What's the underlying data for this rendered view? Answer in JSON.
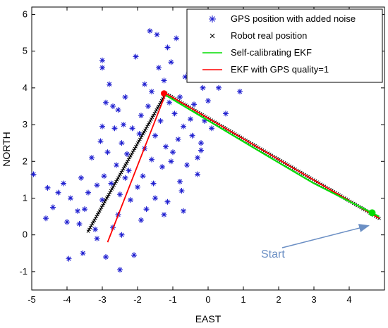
{
  "chart_data": {
    "type": "scatter",
    "xlabel": "EAST",
    "ylabel": "NORTH",
    "xlim": [
      -5,
      5
    ],
    "ylim": [
      -1.5,
      6.2
    ],
    "xticks": [
      "-5",
      "-4",
      "-3",
      "-2",
      "-1",
      "0",
      "1",
      "2",
      "3",
      "4"
    ],
    "yticks": [
      "-1",
      "0",
      "1",
      "2",
      "3",
      "4",
      "5",
      "6"
    ],
    "xtick_values": [
      -5,
      -4,
      -3,
      -2,
      -1,
      0,
      1,
      2,
      3,
      4
    ],
    "ytick_values": [
      -1,
      0,
      1,
      2,
      3,
      4,
      5,
      6
    ],
    "grid": false,
    "legend_position": "top-right",
    "annotation": {
      "text": "Start",
      "color": "#6b8fc4",
      "from": [
        1.9,
        -0.5
      ],
      "to": [
        4.55,
        0.25
      ]
    },
    "series": [
      {
        "name": "GPS position with added noise",
        "kind": "scatter",
        "marker": "*",
        "color": "#1f1fd0",
        "points": [
          [
            -4.95,
            1.65
          ],
          [
            -4.6,
            0.45
          ],
          [
            -4.55,
            1.28
          ],
          [
            -4.4,
            0.75
          ],
          [
            -4.1,
            1.4
          ],
          [
            -4.0,
            0.35
          ],
          [
            -3.95,
            -0.65
          ],
          [
            -3.9,
            1.0
          ],
          [
            -3.65,
            0.3
          ],
          [
            -3.6,
            1.55
          ],
          [
            -3.55,
            -0.5
          ],
          [
            -3.5,
            0.7
          ],
          [
            -3.4,
            1.15
          ],
          [
            -3.3,
            2.1
          ],
          [
            -3.2,
            0.15
          ],
          [
            -3.15,
            1.35
          ],
          [
            -3.05,
            2.55
          ],
          [
            -3.0,
            0.95
          ],
          [
            -3.0,
            4.75
          ],
          [
            -3.0,
            4.55
          ],
          [
            -3.0,
            2.95
          ],
          [
            -2.95,
            1.6
          ],
          [
            -2.9,
            3.6
          ],
          [
            -2.85,
            2.25
          ],
          [
            -2.8,
            4.1
          ],
          [
            -2.7,
            0.2
          ],
          [
            -2.7,
            3.5
          ],
          [
            -2.65,
            2.9
          ],
          [
            -2.6,
            1.9
          ],
          [
            -2.55,
            0.55
          ],
          [
            -2.55,
            3.4
          ],
          [
            -2.5,
            1.1
          ],
          [
            -2.45,
            2.5
          ],
          [
            -2.4,
            3.0
          ],
          [
            -2.35,
            1.55
          ],
          [
            -2.3,
            2.2
          ],
          [
            -2.25,
            1.75
          ],
          [
            -2.2,
            0.95
          ],
          [
            -2.1,
            -0.55
          ],
          [
            -2.0,
            1.3
          ],
          [
            -1.95,
            2.75
          ],
          [
            -1.9,
            3.25
          ],
          [
            -1.85,
            1.6
          ],
          [
            -1.8,
            2.35
          ],
          [
            -1.75,
            0.7
          ],
          [
            -1.7,
            3.5
          ],
          [
            -1.65,
            5.55
          ],
          [
            -1.6,
            2.05
          ],
          [
            -1.55,
            1.4
          ],
          [
            -1.5,
            2.7
          ],
          [
            -1.45,
            5.45
          ],
          [
            -1.4,
            4.55
          ],
          [
            -1.35,
            3.1
          ],
          [
            -1.3,
            1.85
          ],
          [
            -1.25,
            4.2
          ],
          [
            -1.2,
            2.4
          ],
          [
            -1.15,
            5.1
          ],
          [
            -1.1,
            3.6
          ],
          [
            -1.05,
            4.7
          ],
          [
            -1.0,
            2.25
          ],
          [
            -0.95,
            3.3
          ],
          [
            -0.9,
            5.35
          ],
          [
            -0.85,
            2.6
          ],
          [
            -0.8,
            3.75
          ],
          [
            -0.75,
            1.2
          ],
          [
            -0.7,
            2.95
          ],
          [
            -0.65,
            4.3
          ],
          [
            -0.6,
            1.9
          ],
          [
            -0.5,
            3.15
          ],
          [
            -0.45,
            2.7
          ],
          [
            -0.4,
            3.55
          ],
          [
            -0.3,
            1.65
          ],
          [
            -0.3,
            2.1
          ],
          [
            -0.2,
            2.5
          ],
          [
            -0.15,
            4.0
          ],
          [
            -0.1,
            3.1
          ],
          [
            0.0,
            3.65
          ],
          [
            0.1,
            2.9
          ],
          [
            0.3,
            4.0
          ],
          [
            0.5,
            3.3
          ],
          [
            0.9,
            3.9
          ],
          [
            -2.9,
            -0.6
          ],
          [
            -2.5,
            -0.95
          ],
          [
            -2.35,
            3.75
          ],
          [
            -2.05,
            4.85
          ],
          [
            -1.8,
            4.1
          ],
          [
            -1.15,
            0.9
          ],
          [
            -0.7,
            0.65
          ],
          [
            -1.5,
            1.0
          ],
          [
            -2.45,
            0.0
          ],
          [
            -3.15,
            -0.1
          ],
          [
            -2.15,
            2.9
          ],
          [
            -1.05,
            2.0
          ],
          [
            -0.55,
            4.4
          ],
          [
            -0.2,
            2.3
          ],
          [
            -4.25,
            1.15
          ],
          [
            -3.7,
            0.65
          ],
          [
            -2.75,
            1.4
          ],
          [
            -1.6,
            3.9
          ],
          [
            -1.9,
            0.4
          ],
          [
            -1.25,
            0.55
          ],
          [
            -0.8,
            1.45
          ]
        ]
      },
      {
        "name": "Robot real position",
        "kind": "line-markers",
        "marker": "x",
        "color": "#000000",
        "points": [
          [
            -3.4,
            0.1
          ],
          [
            -1.2,
            3.85
          ],
          [
            4.85,
            0.45
          ]
        ]
      },
      {
        "name": "Self-calibrating EKF",
        "kind": "line",
        "color": "#00dd00",
        "points": [
          [
            -1.2,
            3.8
          ],
          [
            1.5,
            2.25
          ],
          [
            3.0,
            1.4
          ],
          [
            4.85,
            0.5
          ]
        ]
      },
      {
        "name": "EKF with GPS quality=1",
        "kind": "line",
        "color": "#ff0000",
        "points": [
          [
            -2.85,
            -0.2
          ],
          [
            -1.2,
            3.85
          ],
          [
            4.85,
            0.45
          ]
        ]
      }
    ]
  }
}
